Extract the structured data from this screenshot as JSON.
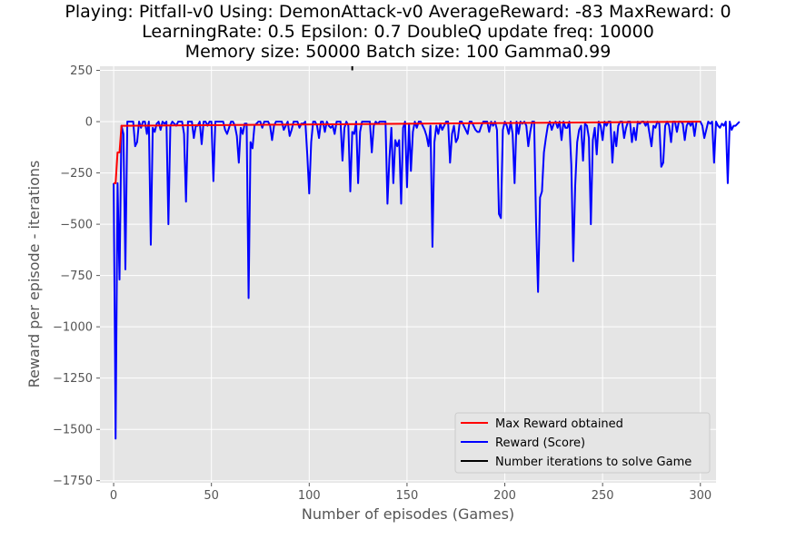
{
  "titles": {
    "line1": "Playing: Pitfall-v0 Using: DemonAttack-v0 AverageReward: -83 MaxReward: 0",
    "line2": "LearningRate: 0.5 Epsilon: 0.7 DoubleQ update freq: 10000",
    "line3": "Memory size: 50000 Batch size: 100 Gamma0.99"
  },
  "chart_data": {
    "type": "line",
    "xlabel": "Number of episodes (Games)",
    "ylabel": "Reward per episode - iterations",
    "xlim": [
      -7,
      308
    ],
    "ylim": [
      -1760,
      270
    ],
    "xticks": [
      0,
      50,
      100,
      150,
      200,
      250,
      300
    ],
    "yticks": [
      250,
      0,
      -250,
      -500,
      -750,
      -1000,
      -1250,
      -1500,
      -1750
    ],
    "grid": true,
    "legend_position": "lower-right",
    "series": [
      {
        "name": "Max Reward obtained",
        "color": "#ff0000",
        "x": [
          0,
          1,
          2,
          3,
          4,
          5,
          300
        ],
        "y": [
          -300,
          -300,
          -150,
          -150,
          -20,
          -20,
          0
        ]
      },
      {
        "name": "Reward (Score)",
        "color": "#0000ff",
        "y": [
          -300,
          -1545,
          -300,
          -770,
          -20,
          -60,
          -720,
          0,
          0,
          0,
          0,
          -120,
          -100,
          0,
          -30,
          0,
          0,
          -60,
          0,
          -600,
          -30,
          -50,
          -10,
          0,
          -40,
          0,
          -10,
          0,
          -500,
          -20,
          0,
          -10,
          -20,
          0,
          0,
          0,
          -60,
          -390,
          0,
          0,
          0,
          -80,
          -20,
          -20,
          0,
          -110,
          0,
          0,
          -20,
          0,
          0,
          -290,
          0,
          0,
          0,
          0,
          0,
          -40,
          -60,
          -30,
          0,
          0,
          -20,
          -70,
          -200,
          -30,
          -60,
          -10,
          -10,
          -860,
          -100,
          -130,
          -20,
          -10,
          0,
          0,
          -30,
          0,
          0,
          0,
          -20,
          -90,
          -20,
          0,
          0,
          0,
          0,
          -40,
          -20,
          0,
          -70,
          -40,
          0,
          0,
          0,
          -30,
          -10,
          -10,
          0,
          -160,
          -350,
          -100,
          0,
          0,
          -20,
          -80,
          0,
          0,
          -50,
          0,
          -20,
          -30,
          -20,
          -60,
          0,
          0,
          0,
          -190,
          -30,
          0,
          -20,
          -340,
          -50,
          -60,
          0,
          -300,
          -50,
          0,
          0,
          0,
          0,
          0,
          -150,
          -20,
          0,
          -10,
          0,
          0,
          0,
          0,
          -400,
          -180,
          -30,
          -300,
          -90,
          -120,
          -90,
          -400,
          -30,
          0,
          -320,
          -10,
          -240,
          -50,
          0,
          -30,
          0,
          0,
          -20,
          -40,
          -70,
          -120,
          -20,
          -610,
          -100,
          -20,
          -60,
          -10,
          -40,
          -20,
          0,
          0,
          -200,
          -60,
          -20,
          -100,
          -80,
          0,
          0,
          -20,
          -40,
          -60,
          0,
          0,
          -20,
          -40,
          -50,
          -50,
          -20,
          0,
          0,
          0,
          -50,
          0,
          -20,
          0,
          -40,
          -450,
          -470,
          -40,
          0,
          -20,
          -60,
          0,
          -60,
          -300,
          0,
          -60,
          0,
          -10,
          0,
          -20,
          -120,
          -50,
          0,
          0,
          -500,
          -830,
          -370,
          -340,
          -150,
          -80,
          -20,
          0,
          -40,
          -10,
          0,
          -30,
          0,
          -90,
          0,
          -30,
          -30,
          0,
          -210,
          -680,
          -310,
          -100,
          -40,
          -20,
          -190,
          -10,
          -20,
          -80,
          -500,
          -90,
          -30,
          -160,
          0,
          -20,
          -90,
          0,
          -20,
          0,
          0,
          -200,
          -50,
          -120,
          -20,
          0,
          0,
          -80,
          -30,
          0,
          0,
          -100,
          -30,
          -90,
          0,
          -10,
          0,
          0,
          -20,
          0,
          -60,
          -120,
          -20,
          -30,
          0,
          -10,
          -220,
          -200,
          -20,
          0,
          -20,
          -100,
          0,
          0,
          -50,
          0,
          0,
          -10,
          -90,
          -20,
          0,
          -20,
          0,
          -70,
          0,
          0,
          0,
          -20,
          -80,
          -40,
          0,
          -10,
          0,
          -200,
          0,
          -20,
          -30,
          -10,
          -20,
          0,
          -300,
          0,
          -40,
          -20,
          -20,
          -10,
          0
        ]
      },
      {
        "name": "Number iterations to solve Game",
        "color": "#000000",
        "x": [
          122,
          122
        ],
        "y": [
          270,
          250
        ]
      }
    ]
  }
}
